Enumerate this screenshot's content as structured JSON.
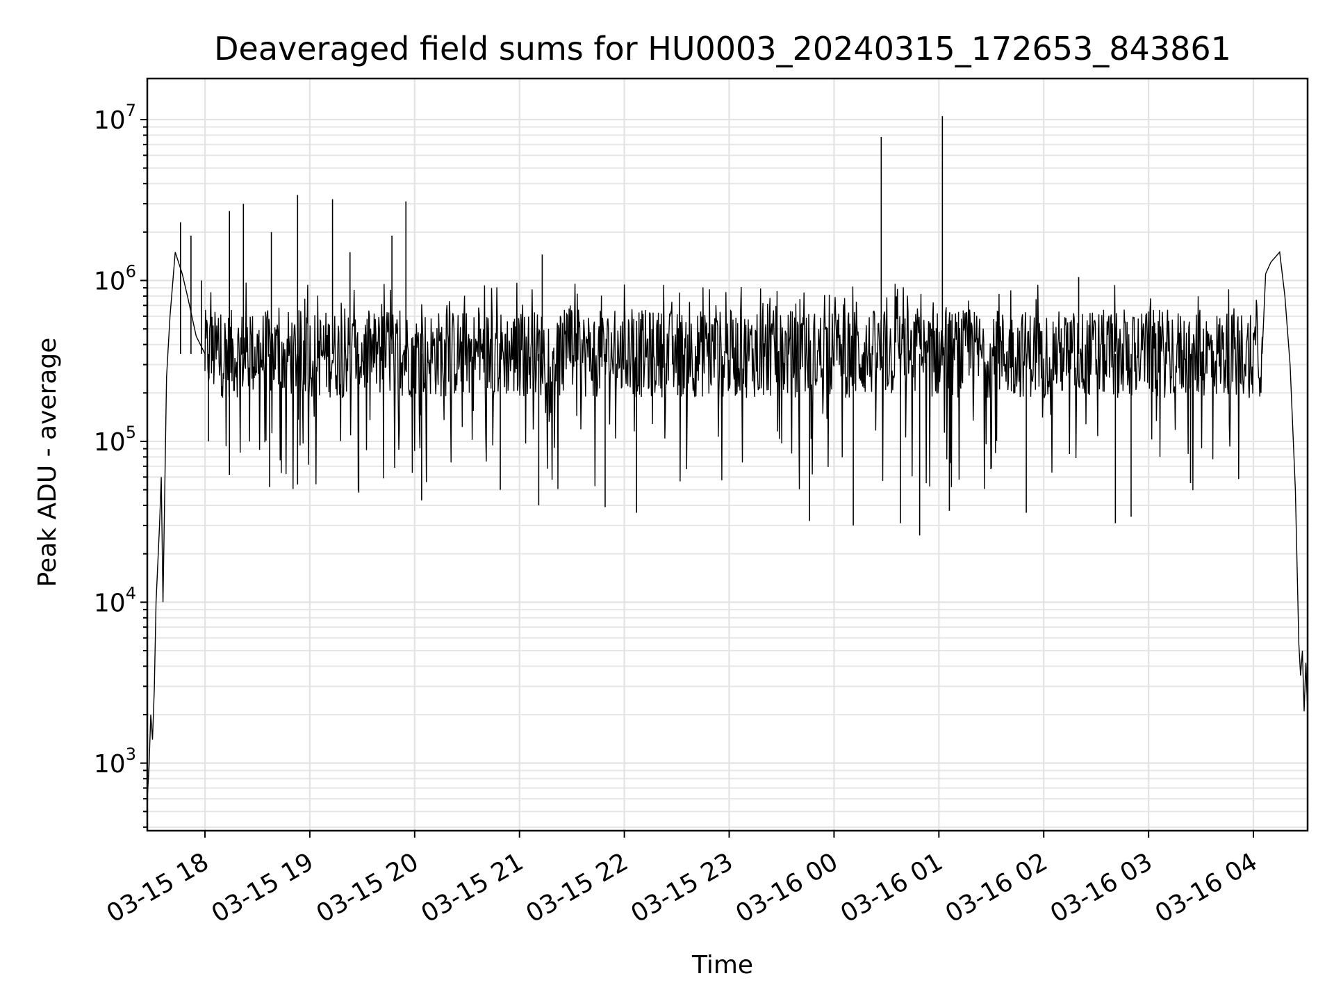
{
  "chart_data": {
    "type": "line",
    "title": "Deaveraged field sums for HU0003_20240315_172653_843861",
    "xlabel": "Time",
    "ylabel": "Peak ADU - average",
    "yscale": "log",
    "xlim": [
      "2024-03-15 17:27",
      "2024-03-16 04:31"
    ],
    "ylim": [
      380,
      18000000
    ],
    "grid": true,
    "grid_minor_y": true,
    "line_color": "#000000",
    "x_ticks": [
      "03-15 18",
      "03-15 19",
      "03-15 20",
      "03-15 21",
      "03-15 22",
      "03-15 23",
      "03-16 00",
      "03-16 01",
      "03-16 02",
      "03-16 03",
      "03-16 04"
    ],
    "y_ticks": [
      {
        "value": 1000,
        "base": "10",
        "exp": "3"
      },
      {
        "value": 10000,
        "base": "10",
        "exp": "4"
      },
      {
        "value": 100000,
        "base": "10",
        "exp": "5"
      },
      {
        "value": 1000000,
        "base": "10",
        "exp": "6"
      },
      {
        "value": 10000000,
        "base": "10",
        "exp": "7"
      }
    ],
    "series": [
      {
        "baseline_level": 350000,
        "points": [
          {
            "t": "2024-03-15 17:27",
            "y": 600
          },
          {
            "t": "2024-03-15 17:28",
            "y": 950
          },
          {
            "t": "2024-03-15 17:29",
            "y": 2000
          },
          {
            "t": "2024-03-15 17:30",
            "y": 1400
          },
          {
            "t": "2024-03-15 17:31",
            "y": 2900
          },
          {
            "t": "2024-03-15 17:32",
            "y": 10000
          },
          {
            "t": "2024-03-15 17:34",
            "y": 30000
          },
          {
            "t": "2024-03-15 17:35",
            "y": 60000
          },
          {
            "t": "2024-03-15 17:36",
            "y": 10000
          },
          {
            "t": "2024-03-15 17:38",
            "y": 250000
          },
          {
            "t": "2024-03-15 17:40",
            "y": 600000
          },
          {
            "t": "2024-03-15 17:43",
            "y": 1500000
          },
          {
            "t": "2024-03-15 17:47",
            "y": 1100000
          },
          {
            "t": "2024-03-15 17:50",
            "y": 800000
          },
          {
            "t": "2024-03-15 17:55",
            "y": 450000
          },
          {
            "t": "2024-03-15 18:00",
            "y": 350000
          },
          {
            "t": "2024-03-16 04:05",
            "y": 350000
          },
          {
            "t": "2024-03-16 04:07",
            "y": 1100000
          },
          {
            "t": "2024-03-16 04:10",
            "y": 1300000
          },
          {
            "t": "2024-03-16 04:15",
            "y": 1500000
          },
          {
            "t": "2024-03-16 04:18",
            "y": 800000
          },
          {
            "t": "2024-03-16 04:21",
            "y": 300000
          },
          {
            "t": "2024-03-16 04:24",
            "y": 50000
          },
          {
            "t": "2024-03-16 04:26",
            "y": 5500
          },
          {
            "t": "2024-03-16 04:27",
            "y": 3500
          },
          {
            "t": "2024-03-16 04:28",
            "y": 5000
          },
          {
            "t": "2024-03-16 04:29",
            "y": 2100
          },
          {
            "t": "2024-03-16 04:30",
            "y": 4200
          },
          {
            "t": "2024-03-16 04:31",
            "y": 2100
          }
        ],
        "upward_spikes": [
          {
            "t": "2024-03-15 17:46",
            "y": 2300000
          },
          {
            "t": "2024-03-15 17:52",
            "y": 1900000
          },
          {
            "t": "2024-03-15 17:58",
            "y": 1000000
          },
          {
            "t": "2024-03-15 18:14",
            "y": 2700000
          },
          {
            "t": "2024-03-15 18:22",
            "y": 3000000
          },
          {
            "t": "2024-03-15 18:38",
            "y": 2000000
          },
          {
            "t": "2024-03-15 18:53",
            "y": 3400000
          },
          {
            "t": "2024-03-15 19:13",
            "y": 3200000
          },
          {
            "t": "2024-03-15 19:23",
            "y": 1500000
          },
          {
            "t": "2024-03-15 19:47",
            "y": 1900000
          },
          {
            "t": "2024-03-15 19:55",
            "y": 3100000
          },
          {
            "t": "2024-03-15 21:13",
            "y": 1450000
          },
          {
            "t": "2024-03-16 00:27",
            "y": 7800000
          },
          {
            "t": "2024-03-16 01:02",
            "y": 10500000
          },
          {
            "t": "2024-03-16 02:20",
            "y": 1050000
          }
        ],
        "downward_spikes": [
          {
            "t": "2024-03-15 18:02",
            "y": 100000
          },
          {
            "t": "2024-03-15 18:14",
            "y": 62000
          },
          {
            "t": "2024-03-15 18:37",
            "y": 52000
          },
          {
            "t": "2024-03-15 18:53",
            "y": 54000
          },
          {
            "t": "2024-03-15 19:28",
            "y": 48000
          },
          {
            "t": "2024-03-15 20:04",
            "y": 43000
          },
          {
            "t": "2024-03-15 20:49",
            "y": 50000
          },
          {
            "t": "2024-03-15 21:11",
            "y": 40000
          },
          {
            "t": "2024-03-15 21:49",
            "y": 39000
          },
          {
            "t": "2024-03-15 22:07",
            "y": 36000
          },
          {
            "t": "2024-03-15 23:46",
            "y": 32000
          },
          {
            "t": "2024-03-16 00:11",
            "y": 30000
          },
          {
            "t": "2024-03-16 00:38",
            "y": 31000
          },
          {
            "t": "2024-03-16 00:49",
            "y": 26000
          },
          {
            "t": "2024-03-16 01:06",
            "y": 37000
          },
          {
            "t": "2024-03-16 01:50",
            "y": 36000
          },
          {
            "t": "2024-03-16 02:41",
            "y": 31000
          },
          {
            "t": "2024-03-16 02:50",
            "y": 34000
          },
          {
            "t": "2024-03-16 03:24",
            "y": 55000
          }
        ]
      }
    ]
  }
}
